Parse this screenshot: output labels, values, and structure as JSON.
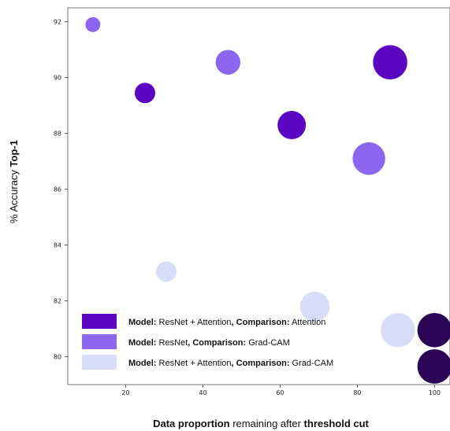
{
  "chart_data": {
    "type": "scatter",
    "title": "",
    "xlabel": {
      "bold1": "Data proportion",
      "mid": " remaining after ",
      "bold2": "threshold cut"
    },
    "ylabel": {
      "plain": "% Accuracy ",
      "bold": "Top-1"
    },
    "xlim": [
      5,
      104
    ],
    "ylim": [
      79.0,
      92.5
    ],
    "xticks": [
      20,
      40,
      60,
      80,
      100
    ],
    "yticks": [
      80,
      82,
      84,
      86,
      88,
      90,
      92
    ],
    "grid": false,
    "legend_position": "lower-left",
    "series": [
      {
        "legend": {
          "model_key": "Model:",
          "model": " ResNet + Attention",
          "comp_key": ", Comparison:",
          "comp": " Attention"
        },
        "color": "#5c06c4",
        "points": [
          {
            "x": 25,
            "y": 89.45,
            "size": 1
          },
          {
            "x": 63,
            "y": 88.3,
            "size": 2
          },
          {
            "x": 88.5,
            "y": 90.55,
            "size": 3
          }
        ]
      },
      {
        "legend": {
          "model_key": "Model:",
          "model": " ResNet",
          "comp_key": ", Comparison:",
          "comp": " Grad-CAM"
        },
        "color": "#8c66ee",
        "points": [
          {
            "x": 11.5,
            "y": 91.9,
            "size": 0.5
          },
          {
            "x": 46.5,
            "y": 90.55,
            "size": 1.5
          },
          {
            "x": 83,
            "y": 87.1,
            "size": 2.7
          }
        ]
      },
      {
        "legend": {
          "model_key": "Model:",
          "model": " ResNet + Attention",
          "comp_key": ", Comparison:",
          "comp": " Grad-CAM"
        },
        "color": "#d8dcf8",
        "points": [
          {
            "x": 30.5,
            "y": 83.05,
            "size": 1
          },
          {
            "x": 69,
            "y": 81.8,
            "size": 2.2
          },
          {
            "x": 90.5,
            "y": 80.95,
            "size": 3
          }
        ]
      },
      {
        "legend": null,
        "color": "#2b0455",
        "points": [
          {
            "x": 100,
            "y": 80.95,
            "size": 3
          },
          {
            "x": 100,
            "y": 79.65,
            "size": 3
          }
        ]
      }
    ]
  }
}
